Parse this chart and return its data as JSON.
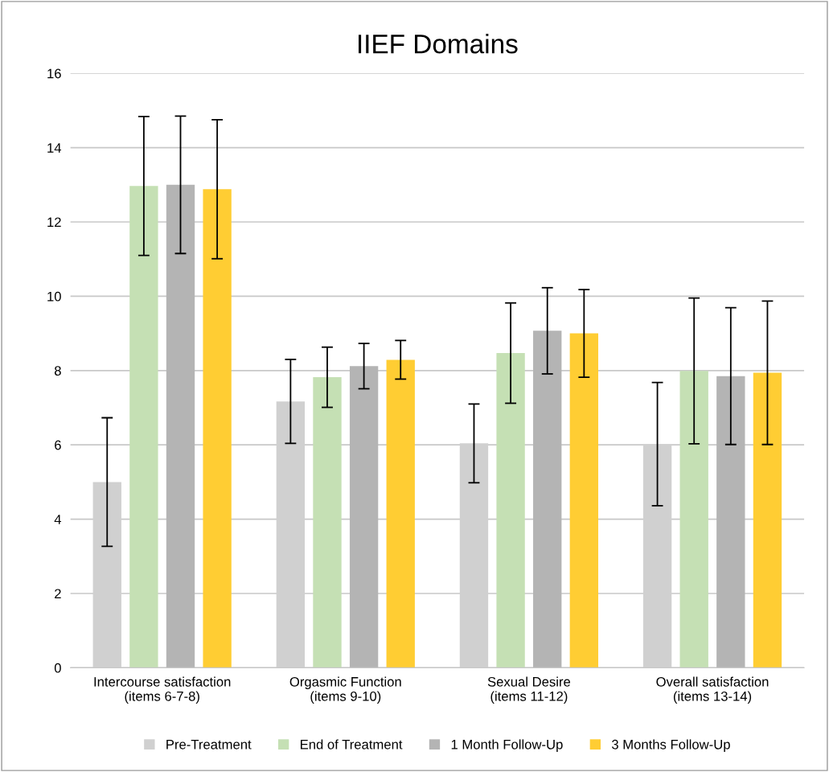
{
  "chart_data": {
    "type": "bar",
    "title": "IIEF Domains",
    "categories": [
      "Intercourse satisfaction\n(items 6-7-8)",
      "Orgasmic Function\n(items 9-10)",
      "Sexual Desire\n(items 11-12)",
      "Overall satisfaction\n(items 13-14)"
    ],
    "series": [
      {
        "name": "Pre-Treatment",
        "color": "#d0d0d0",
        "values": [
          5.0,
          7.17,
          6.04,
          6.02
        ],
        "errors": [
          1.73,
          1.13,
          1.06,
          1.66
        ]
      },
      {
        "name": "End of Treatment",
        "color": "#c5e0b4",
        "values": [
          12.97,
          7.82,
          8.47,
          7.99
        ],
        "errors": [
          1.87,
          0.81,
          1.35,
          1.96
        ]
      },
      {
        "name": "1 Month Follow-Up",
        "color": "#b4b4b4",
        "values": [
          13.0,
          8.12,
          9.07,
          7.85
        ],
        "errors": [
          1.85,
          0.61,
          1.16,
          1.84
        ]
      },
      {
        "name": "3 Months Follow-Up",
        "color": "#ffcd33",
        "values": [
          12.88,
          8.29,
          9.0,
          7.94
        ],
        "errors": [
          1.87,
          0.52,
          1.18,
          1.93
        ]
      }
    ],
    "ylim": [
      0,
      16
    ],
    "yticks": [
      0,
      2,
      4,
      6,
      8,
      10,
      12,
      14,
      16
    ],
    "grid": "y",
    "legend": "bottom"
  }
}
